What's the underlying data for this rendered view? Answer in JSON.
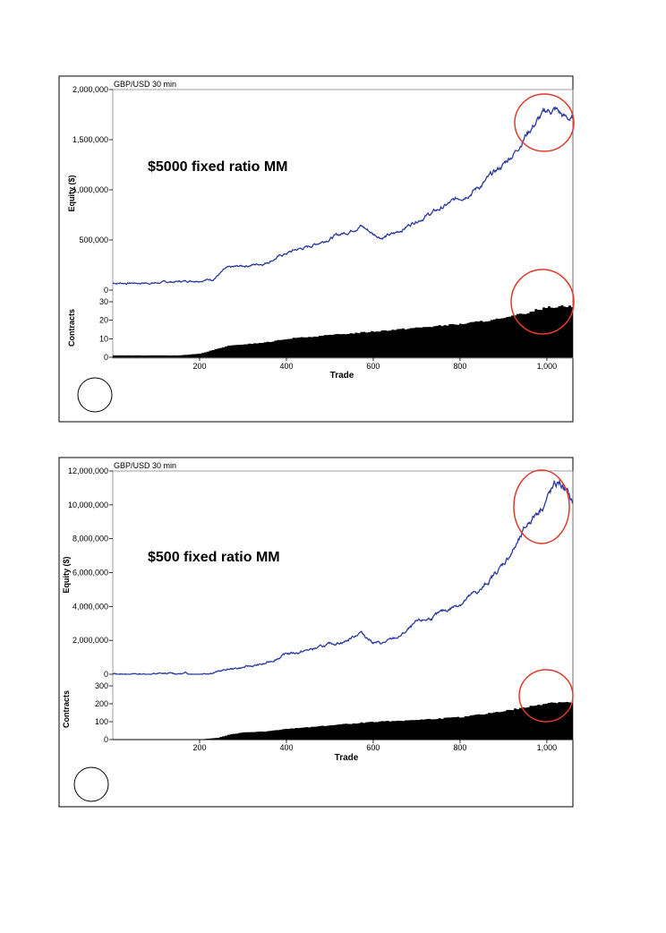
{
  "chart_data": [
    {
      "type": "line",
      "chart_title": "GBP/USD 30 min",
      "annotation": "$5000 fixed ratio MM",
      "equity_panel": {
        "ylabel": "Equity ($)",
        "ylim": [
          0,
          2000000
        ],
        "yticks": [
          0,
          500000,
          1000000,
          1500000,
          2000000
        ],
        "ytick_labels": [
          "0",
          "500,000",
          "1,000,000",
          "1,500,000",
          "2,000,000"
        ],
        "series_color": "#2b3a9e",
        "x": [
          0,
          100,
          150,
          200,
          230,
          260,
          300,
          350,
          380,
          420,
          450,
          500,
          540,
          570,
          600,
          620,
          650,
          700,
          750,
          800,
          850,
          900,
          930,
          950,
          980,
          1000,
          1020,
          1040,
          1060
        ],
        "values": [
          70000,
          72000,
          85000,
          100000,
          110000,
          210000,
          240000,
          270000,
          330000,
          400000,
          430000,
          520000,
          580000,
          650000,
          560000,
          530000,
          560000,
          700000,
          800000,
          920000,
          1050000,
          1250000,
          1400000,
          1550000,
          1700000,
          1780000,
          1800000,
          1720000,
          1700000
        ]
      },
      "contracts_panel": {
        "ylabel": "Contracts",
        "ylim": [
          0,
          30
        ],
        "yticks": [
          0,
          10,
          20,
          30
        ],
        "ytick_labels": [
          "0",
          "10",
          "20",
          "30"
        ],
        "series_color": "#000000",
        "x": [
          0,
          150,
          200,
          230,
          260,
          300,
          350,
          400,
          450,
          500,
          600,
          700,
          800,
          900,
          950,
          980,
          1000,
          1040,
          1060
        ],
        "values": [
          1,
          1,
          2,
          4,
          6,
          7,
          8,
          10,
          11,
          12,
          14,
          16,
          18,
          21,
          24,
          26,
          27,
          28,
          27
        ]
      },
      "xlabel": "Trade",
      "xlim": [
        0,
        1060
      ],
      "xticks": [
        200,
        400,
        600,
        800,
        1000
      ],
      "xtick_labels": [
        "200",
        "400",
        "600",
        "800",
        "1,000"
      ],
      "highlight_color": "#e03a2a"
    },
    {
      "type": "line",
      "chart_title": "GBP/USD 30 min",
      "annotation": "$500 fixed ratio MM",
      "equity_panel": {
        "ylabel": "Equity ($)",
        "ylim": [
          0,
          12000000
        ],
        "yticks": [
          0,
          2000000,
          4000000,
          6000000,
          8000000,
          10000000,
          12000000
        ],
        "ytick_labels": [
          "0",
          "2,000,000",
          "4,000,000",
          "6,000,000",
          "8,000,000",
          "10,000,000",
          "12,000,000"
        ],
        "series_color": "#2b3a9e",
        "x": [
          0,
          100,
          200,
          240,
          270,
          300,
          350,
          400,
          430,
          480,
          540,
          570,
          600,
          620,
          660,
          700,
          750,
          800,
          850,
          900,
          940,
          960,
          990,
          1010,
          1030,
          1050,
          1060
        ],
        "values": [
          0,
          20000,
          50000,
          150000,
          300000,
          400000,
          600000,
          1200000,
          1300000,
          1600000,
          2000000,
          2500000,
          1900000,
          1800000,
          2200000,
          3000000,
          3500000,
          4200000,
          5000000,
          6500000,
          8000000,
          9000000,
          10000000,
          10800000,
          11300000,
          10500000,
          10000000
        ]
      },
      "contracts_panel": {
        "ylabel": "Contracts",
        "ylim": [
          0,
          300
        ],
        "yticks": [
          0,
          100,
          200,
          300
        ],
        "ytick_labels": [
          "0",
          "100",
          "200",
          "300"
        ],
        "series_color": "#000000",
        "x": [
          0,
          200,
          240,
          270,
          300,
          350,
          400,
          450,
          500,
          550,
          600,
          700,
          800,
          900,
          950,
          980,
          1000,
          1040,
          1060
        ],
        "values": [
          1,
          2,
          10,
          30,
          40,
          45,
          60,
          70,
          80,
          90,
          100,
          110,
          125,
          160,
          180,
          195,
          205,
          210,
          200
        ]
      },
      "xlabel": "Trade",
      "xlim": [
        0,
        1060
      ],
      "xticks": [
        200,
        400,
        600,
        800,
        1000
      ],
      "xtick_labels": [
        "200",
        "400",
        "600",
        "800",
        "1,000"
      ],
      "highlight_color": "#e03a2a"
    }
  ]
}
